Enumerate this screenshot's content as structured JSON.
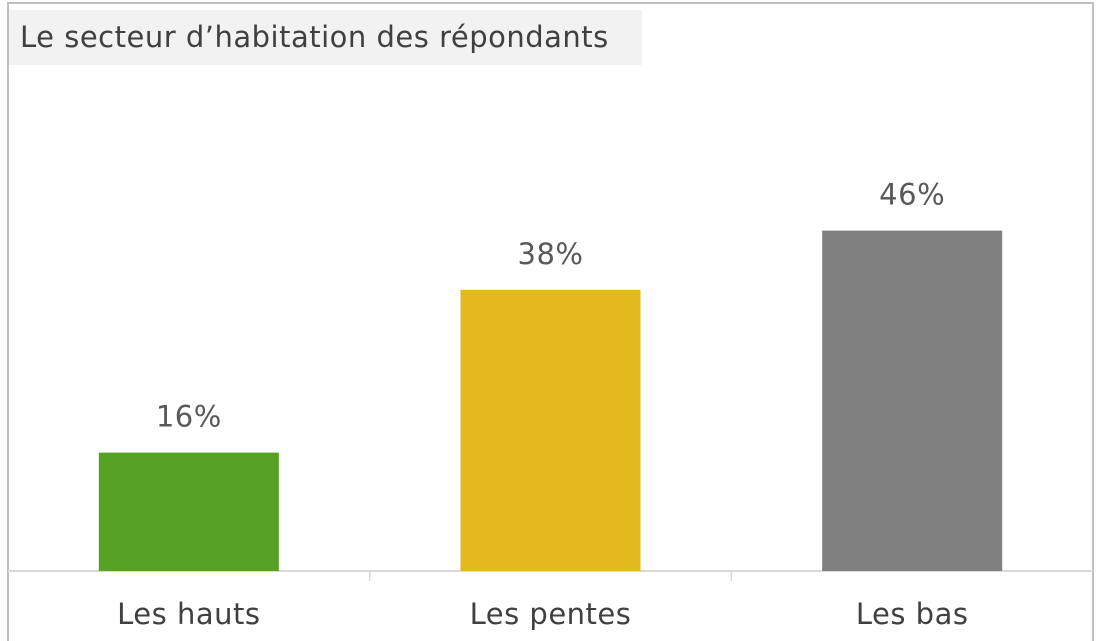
{
  "chart_data": {
    "type": "bar",
    "title": "Le secteur d’habitation des répondants",
    "categories": [
      "Les hauts",
      "Les pentes",
      "Les bas"
    ],
    "values": [
      16,
      38,
      46
    ],
    "value_labels": [
      "16%",
      "38%",
      "46%"
    ],
    "colors": [
      "#55a224",
      "#e4b81f",
      "#808080"
    ]
  }
}
